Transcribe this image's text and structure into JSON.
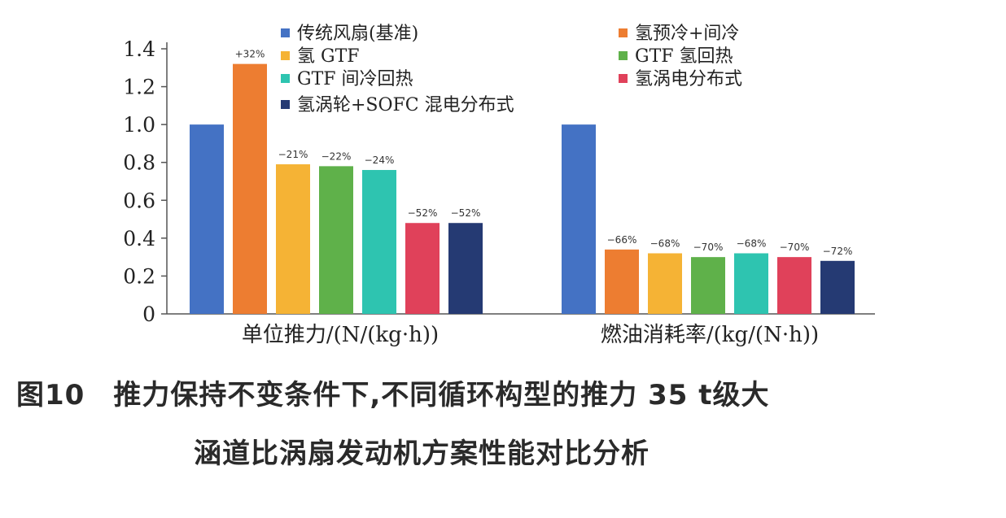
{
  "chart_data": {
    "type": "bar",
    "categories": [
      "单位推力/(N/(kg·h))",
      "燃油消耗率/(kg/(N·h))"
    ],
    "series": [
      {
        "name": "传统风扇(基准)",
        "color": "#4472c4",
        "values": [
          1.0,
          1.0
        ],
        "labels": [
          "",
          ""
        ]
      },
      {
        "name": "氢预冷+间冷",
        "color": "#ed7d31",
        "values": [
          1.32,
          0.34
        ],
        "labels": [
          "+32%",
          "−66%"
        ]
      },
      {
        "name": "氢 GTF",
        "color": "#f5b335",
        "values": [
          0.79,
          0.32
        ],
        "labels": [
          "−21%",
          "−68%"
        ]
      },
      {
        "name": "GTF 氢回热",
        "color": "#5fb14a",
        "values": [
          0.78,
          0.3
        ],
        "labels": [
          "−22%",
          "−70%"
        ]
      },
      {
        "name": "GTF 间冷回热",
        "color": "#2ec4b0",
        "values": [
          0.76,
          0.32
        ],
        "labels": [
          "−24%",
          "−68%"
        ]
      },
      {
        "name": "氢涡电分布式",
        "color": "#e0415a",
        "values": [
          0.48,
          0.3
        ],
        "labels": [
          "−52%",
          "−70%"
        ]
      },
      {
        "name": "氢涡轮+SOFC 混电分布式",
        "color": "#253a73",
        "values": [
          0.48,
          0.28
        ],
        "labels": [
          "−52%",
          "−72%"
        ]
      }
    ],
    "yticks": [
      "0",
      "0.2",
      "0.4",
      "0.6",
      "0.8",
      "1.0",
      "1.2",
      "1.4"
    ],
    "ylim": [
      0,
      1.4
    ],
    "legend": "top-inside",
    "grid": false
  },
  "caption": {
    "line1": "图10　推力保持不变条件下,不同循环构型的推力 35 t级大",
    "line2": "涵道比涡扇发动机方案性能对比分析"
  }
}
